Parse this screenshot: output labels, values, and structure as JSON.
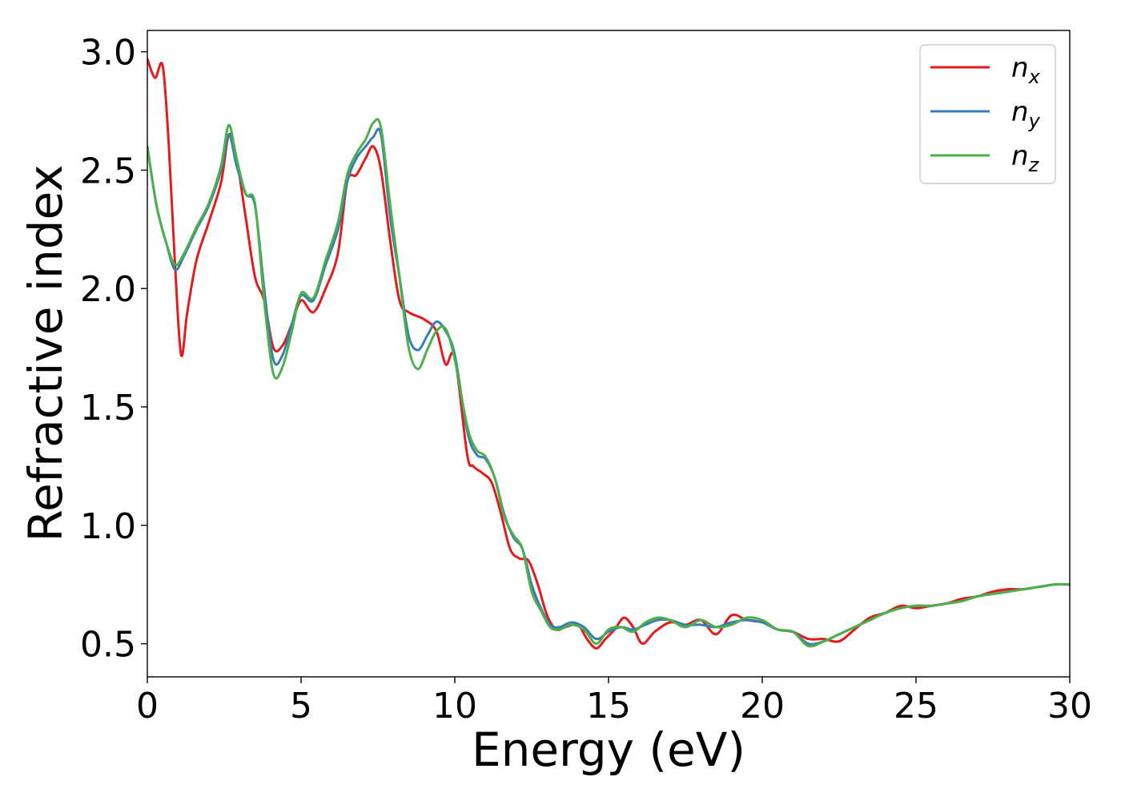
{
  "chart_data": {
    "type": "line",
    "xlabel": "Energy (eV)",
    "ylabel": "Refractive index",
    "xlim": [
      0,
      30
    ],
    "ylim": [
      0.36,
      3.09
    ],
    "xticks": [
      0,
      5,
      10,
      15,
      20,
      25,
      30
    ],
    "xtick_labels": [
      "0",
      "5",
      "10",
      "15",
      "20",
      "25",
      "30"
    ],
    "yticks": [
      0.5,
      1.0,
      1.5,
      2.0,
      2.5,
      3.0
    ],
    "ytick_labels": [
      "0.5",
      "1.0",
      "1.5",
      "2.0",
      "2.5",
      "3.0"
    ],
    "grid": false,
    "legend": {
      "position": "top-right"
    },
    "series": [
      {
        "name": "n",
        "subscript": "x",
        "color": "#e41a1c",
        "x": [
          0,
          0.25,
          0.5,
          0.7,
          0.9,
          1.1,
          1.3,
          1.6,
          2.0,
          2.4,
          2.65,
          2.9,
          3.2,
          3.5,
          3.8,
          4.1,
          4.4,
          4.7,
          5.0,
          5.4,
          5.8,
          6.2,
          6.5,
          6.8,
          7.1,
          7.35,
          7.6,
          7.9,
          8.2,
          8.5,
          9.0,
          9.4,
          9.7,
          10.0,
          10.4,
          10.6,
          10.9,
          11.2,
          11.5,
          11.8,
          12.1,
          12.4,
          12.7,
          13.0,
          13.3,
          13.6,
          14.0,
          14.3,
          14.6,
          14.9,
          15.2,
          15.5,
          15.8,
          16.1,
          16.5,
          17.0,
          17.5,
          18.0,
          18.5,
          19.0,
          19.5,
          20.0,
          20.5,
          21.0,
          21.5,
          22.0,
          22.5,
          23.0,
          23.5,
          24.0,
          24.5,
          25.0,
          25.5,
          26.0,
          26.5,
          27.0,
          27.5,
          28.0,
          28.5,
          29.0,
          29.5,
          30.0
        ],
        "y": [
          2.97,
          2.89,
          2.94,
          2.6,
          2.1,
          1.72,
          1.9,
          2.12,
          2.28,
          2.45,
          2.65,
          2.55,
          2.3,
          2.05,
          1.95,
          1.75,
          1.76,
          1.85,
          1.95,
          1.9,
          2.0,
          2.15,
          2.45,
          2.48,
          2.55,
          2.6,
          2.5,
          2.2,
          1.95,
          1.9,
          1.87,
          1.82,
          1.68,
          1.71,
          1.3,
          1.25,
          1.22,
          1.18,
          1.05,
          0.9,
          0.86,
          0.85,
          0.75,
          0.62,
          0.56,
          0.57,
          0.58,
          0.52,
          0.48,
          0.52,
          0.56,
          0.61,
          0.57,
          0.5,
          0.55,
          0.59,
          0.58,
          0.6,
          0.54,
          0.62,
          0.6,
          0.59,
          0.56,
          0.55,
          0.52,
          0.52,
          0.51,
          0.56,
          0.61,
          0.63,
          0.66,
          0.65,
          0.66,
          0.67,
          0.69,
          0.7,
          0.72,
          0.73,
          0.73,
          0.74,
          0.75,
          0.75
        ]
      },
      {
        "name": "n",
        "subscript": "y",
        "color": "#377eb8",
        "x": [
          0,
          0.3,
          0.6,
          0.9,
          1.2,
          1.6,
          2.0,
          2.4,
          2.65,
          2.9,
          3.2,
          3.5,
          3.8,
          4.1,
          4.4,
          4.7,
          5.0,
          5.4,
          5.8,
          6.2,
          6.5,
          6.8,
          7.1,
          7.35,
          7.6,
          7.9,
          8.2,
          8.5,
          8.8,
          9.1,
          9.4,
          9.7,
          10.0,
          10.4,
          10.7,
          11.0,
          11.3,
          11.6,
          11.9,
          12.2,
          12.5,
          12.8,
          13.1,
          13.4,
          13.8,
          14.2,
          14.6,
          15.0,
          15.4,
          15.8,
          16.2,
          16.6,
          17.0,
          17.5,
          18.0,
          18.5,
          19.0,
          19.5,
          20.0,
          20.5,
          21.0,
          21.5,
          22.0,
          22.5,
          23.0,
          23.5,
          24.0,
          24.5,
          25.0,
          25.5,
          26.0,
          26.5,
          27.0,
          27.5,
          28.0,
          28.5,
          29.0,
          29.5,
          30.0
        ],
        "y": [
          2.6,
          2.35,
          2.2,
          2.08,
          2.14,
          2.25,
          2.35,
          2.5,
          2.65,
          2.52,
          2.4,
          2.35,
          2.0,
          1.7,
          1.72,
          1.85,
          1.97,
          1.95,
          2.1,
          2.25,
          2.45,
          2.55,
          2.6,
          2.64,
          2.65,
          2.3,
          2.05,
          1.8,
          1.74,
          1.8,
          1.86,
          1.82,
          1.72,
          1.4,
          1.3,
          1.28,
          1.2,
          1.05,
          0.95,
          0.9,
          0.75,
          0.65,
          0.58,
          0.57,
          0.59,
          0.57,
          0.52,
          0.55,
          0.57,
          0.56,
          0.58,
          0.6,
          0.6,
          0.58,
          0.58,
          0.57,
          0.59,
          0.6,
          0.59,
          0.56,
          0.55,
          0.5,
          0.51,
          0.54,
          0.57,
          0.6,
          0.63,
          0.65,
          0.66,
          0.66,
          0.67,
          0.68,
          0.7,
          0.71,
          0.72,
          0.73,
          0.74,
          0.75,
          0.75
        ]
      },
      {
        "name": "n",
        "subscript": "z",
        "color": "#4daf4a",
        "x": [
          0,
          0.3,
          0.6,
          0.9,
          1.2,
          1.6,
          2.0,
          2.4,
          2.65,
          2.9,
          3.2,
          3.5,
          3.8,
          4.1,
          4.4,
          4.7,
          5.0,
          5.4,
          5.8,
          6.2,
          6.5,
          6.8,
          7.1,
          7.35,
          7.6,
          7.9,
          8.2,
          8.5,
          8.8,
          9.1,
          9.4,
          9.7,
          10.0,
          10.4,
          10.7,
          11.0,
          11.3,
          11.6,
          11.9,
          12.2,
          12.5,
          12.8,
          13.1,
          13.4,
          13.8,
          14.2,
          14.6,
          15.0,
          15.4,
          15.8,
          16.2,
          16.6,
          17.0,
          17.5,
          18.0,
          18.5,
          19.0,
          19.5,
          20.0,
          20.5,
          21.0,
          21.5,
          22.0,
          22.5,
          23.0,
          23.5,
          24.0,
          24.5,
          25.0,
          25.5,
          26.0,
          26.5,
          27.0,
          27.5,
          28.0,
          28.5,
          29.0,
          29.5,
          30.0
        ],
        "y": [
          2.6,
          2.35,
          2.2,
          2.1,
          2.15,
          2.26,
          2.36,
          2.52,
          2.69,
          2.55,
          2.4,
          2.36,
          1.95,
          1.64,
          1.67,
          1.82,
          1.98,
          1.96,
          2.12,
          2.28,
          2.48,
          2.57,
          2.63,
          2.7,
          2.68,
          2.35,
          2.05,
          1.75,
          1.66,
          1.74,
          1.82,
          1.83,
          1.7,
          1.42,
          1.32,
          1.29,
          1.2,
          1.04,
          0.96,
          0.9,
          0.72,
          0.64,
          0.57,
          0.56,
          0.58,
          0.56,
          0.5,
          0.56,
          0.57,
          0.55,
          0.59,
          0.61,
          0.6,
          0.57,
          0.6,
          0.57,
          0.58,
          0.61,
          0.6,
          0.56,
          0.55,
          0.49,
          0.51,
          0.54,
          0.57,
          0.6,
          0.63,
          0.65,
          0.66,
          0.66,
          0.67,
          0.68,
          0.7,
          0.71,
          0.72,
          0.73,
          0.74,
          0.75,
          0.75
        ]
      }
    ]
  }
}
